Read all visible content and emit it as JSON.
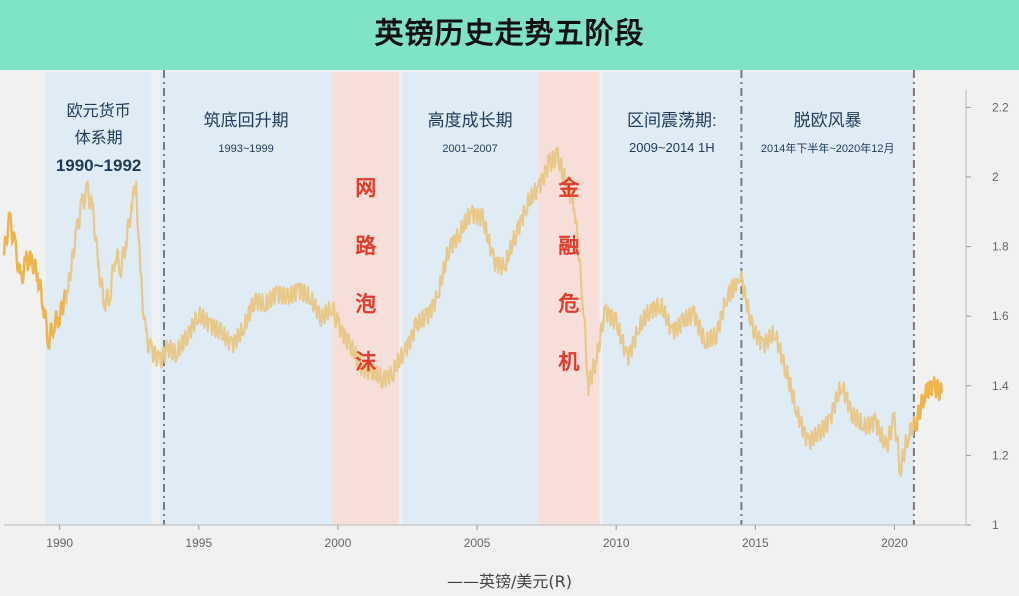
{
  "title": "英镑历史走势五阶段",
  "legend_label": "——英镑/美元(R)",
  "chart_data": {
    "type": "line",
    "series": [
      {
        "name": "英镑/美元(R)",
        "color": "#e8c98a",
        "end_color": "#f0b44a",
        "points": [
          [
            1988.0,
            1.78
          ],
          [
            1988.2,
            1.88
          ],
          [
            1988.4,
            1.8
          ],
          [
            1988.6,
            1.7
          ],
          [
            1988.8,
            1.76
          ],
          [
            1989.0,
            1.76
          ],
          [
            1989.2,
            1.72
          ],
          [
            1989.4,
            1.64
          ],
          [
            1989.6,
            1.53
          ],
          [
            1989.8,
            1.58
          ],
          [
            1990.0,
            1.6
          ],
          [
            1990.3,
            1.68
          ],
          [
            1990.6,
            1.84
          ],
          [
            1990.8,
            1.92
          ],
          [
            1991.0,
            1.96
          ],
          [
            1991.2,
            1.9
          ],
          [
            1991.4,
            1.74
          ],
          [
            1991.6,
            1.64
          ],
          [
            1991.8,
            1.66
          ],
          [
            1992.0,
            1.78
          ],
          [
            1992.2,
            1.74
          ],
          [
            1992.4,
            1.82
          ],
          [
            1992.6,
            1.92
          ],
          [
            1992.75,
            1.98
          ],
          [
            1992.9,
            1.72
          ],
          [
            1993.1,
            1.54
          ],
          [
            1993.3,
            1.5
          ],
          [
            1993.6,
            1.47
          ],
          [
            1993.9,
            1.51
          ],
          [
            1994.2,
            1.49
          ],
          [
            1994.6,
            1.55
          ],
          [
            1995.0,
            1.6
          ],
          [
            1995.4,
            1.58
          ],
          [
            1995.8,
            1.55
          ],
          [
            1996.2,
            1.52
          ],
          [
            1996.6,
            1.56
          ],
          [
            1997.0,
            1.65
          ],
          [
            1997.4,
            1.63
          ],
          [
            1997.8,
            1.67
          ],
          [
            1998.2,
            1.65
          ],
          [
            1998.6,
            1.68
          ],
          [
            1999.0,
            1.65
          ],
          [
            1999.4,
            1.6
          ],
          [
            1999.8,
            1.62
          ],
          [
            2000.0,
            1.58
          ],
          [
            2000.4,
            1.52
          ],
          [
            2000.8,
            1.46
          ],
          [
            2001.2,
            1.44
          ],
          [
            2001.6,
            1.42
          ],
          [
            2002.0,
            1.44
          ],
          [
            2002.4,
            1.5
          ],
          [
            2002.8,
            1.57
          ],
          [
            2003.2,
            1.6
          ],
          [
            2003.6,
            1.66
          ],
          [
            2004.0,
            1.8
          ],
          [
            2004.4,
            1.84
          ],
          [
            2004.8,
            1.9
          ],
          [
            2005.2,
            1.88
          ],
          [
            2005.6,
            1.76
          ],
          [
            2006.0,
            1.74
          ],
          [
            2006.4,
            1.84
          ],
          [
            2006.8,
            1.92
          ],
          [
            2007.2,
            1.97
          ],
          [
            2007.6,
            2.04
          ],
          [
            2007.9,
            2.06
          ],
          [
            2008.2,
            1.98
          ],
          [
            2008.5,
            1.92
          ],
          [
            2008.8,
            1.65
          ],
          [
            2009.0,
            1.4
          ],
          [
            2009.3,
            1.48
          ],
          [
            2009.6,
            1.62
          ],
          [
            2010.0,
            1.58
          ],
          [
            2010.4,
            1.48
          ],
          [
            2010.8,
            1.56
          ],
          [
            2011.2,
            1.62
          ],
          [
            2011.6,
            1.63
          ],
          [
            2012.0,
            1.56
          ],
          [
            2012.4,
            1.58
          ],
          [
            2012.8,
            1.61
          ],
          [
            2013.2,
            1.52
          ],
          [
            2013.6,
            1.55
          ],
          [
            2014.0,
            1.66
          ],
          [
            2014.5,
            1.71
          ],
          [
            2014.9,
            1.56
          ],
          [
            2015.3,
            1.52
          ],
          [
            2015.7,
            1.55
          ],
          [
            2016.1,
            1.45
          ],
          [
            2016.5,
            1.32
          ],
          [
            2016.9,
            1.24
          ],
          [
            2017.3,
            1.26
          ],
          [
            2017.7,
            1.31
          ],
          [
            2018.1,
            1.4
          ],
          [
            2018.5,
            1.32
          ],
          [
            2018.9,
            1.28
          ],
          [
            2019.3,
            1.3
          ],
          [
            2019.7,
            1.22
          ],
          [
            2020.0,
            1.31
          ],
          [
            2020.2,
            1.16
          ],
          [
            2020.5,
            1.26
          ],
          [
            2020.8,
            1.3
          ],
          [
            2021.1,
            1.38
          ],
          [
            2021.4,
            1.4
          ],
          [
            2021.7,
            1.38
          ]
        ]
      }
    ],
    "xlim": [
      1988,
      2022.5
    ],
    "ylim": [
      1,
      2.25
    ],
    "x_ticks": [
      1990,
      1995,
      2000,
      2005,
      2010,
      2015,
      2020
    ],
    "x_tick_labels": [
      "1990",
      "1995",
      "2000",
      "2005",
      "2010",
      "2015",
      "2020"
    ],
    "y_ticks": [
      1,
      1.2,
      1.4,
      1.6,
      1.8,
      2,
      2.2
    ],
    "y_tick_labels": [
      "1",
      "1.2",
      "1.4",
      "1.6",
      "1.8",
      "2",
      "2.2"
    ],
    "y_axis_side": "right",
    "grid": false,
    "vlines": [
      1993.75,
      2014.5,
      2020.7
    ],
    "shaded_regions": [
      {
        "start": 1989.5,
        "end": 1993.3,
        "kind": "phase",
        "color": "#dceaf6",
        "lines": [
          "欧元货币",
          "体系期",
          "1990~1992"
        ]
      },
      {
        "start": 1993.6,
        "end": 1999.8,
        "kind": "phase",
        "color": "#dceaf6",
        "lines": [
          "筑底回升期",
          "1993~1999"
        ]
      },
      {
        "start": 1999.8,
        "end": 2002.2,
        "kind": "crisis",
        "color": "#f7dcd5",
        "lines": [
          "网",
          "路",
          "泡",
          "沫"
        ]
      },
      {
        "start": 2002.3,
        "end": 2007.2,
        "kind": "phase",
        "color": "#dceaf6",
        "lines": [
          "高度成长期",
          "2001~2007"
        ]
      },
      {
        "start": 2007.2,
        "end": 2009.4,
        "kind": "crisis",
        "color": "#f7dcd5",
        "lines": [
          "金",
          "融",
          "危",
          "机"
        ]
      },
      {
        "start": 2009.5,
        "end": 2014.5,
        "kind": "phase",
        "color": "#dceaf6",
        "lines": [
          "区间震荡期:",
          "2009~2014 1H"
        ]
      },
      {
        "start": 2014.5,
        "end": 2020.7,
        "kind": "phase",
        "color": "#dceaf6",
        "lines": [
          "脱欧风暴",
          "2014年下半年~2020年12月"
        ]
      }
    ]
  }
}
